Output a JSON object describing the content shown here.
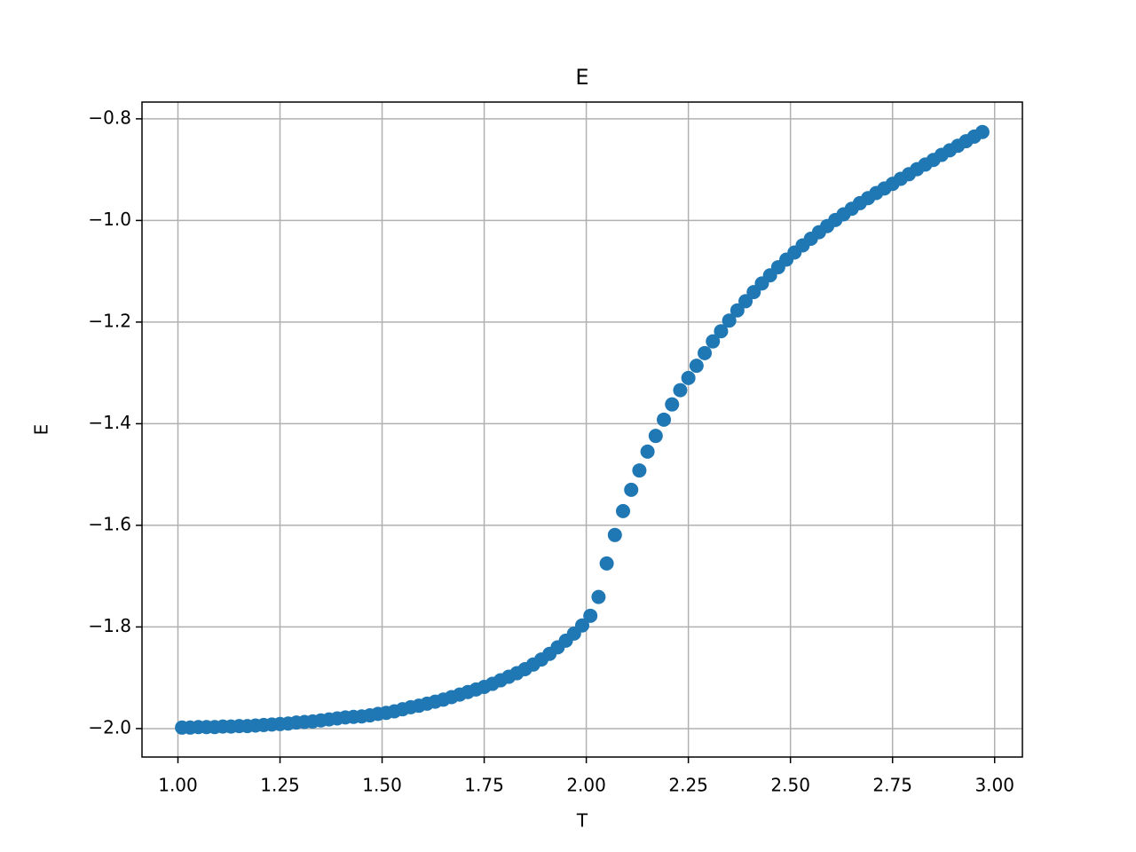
{
  "chart_data": {
    "type": "scatter",
    "title": "E",
    "xlabel": "T",
    "ylabel": "E",
    "color": "#1f77b4",
    "grid": true,
    "xlim": [
      0.912,
      3.068
    ],
    "ylim": [
      -2.056,
      -0.767
    ],
    "xticks": [
      {
        "value": 1.0,
        "label": "1.00"
      },
      {
        "value": 1.25,
        "label": "1.25"
      },
      {
        "value": 1.5,
        "label": "1.50"
      },
      {
        "value": 1.75,
        "label": "1.75"
      },
      {
        "value": 2.0,
        "label": "2.00"
      },
      {
        "value": 2.25,
        "label": "2.25"
      },
      {
        "value": 2.5,
        "label": "2.50"
      },
      {
        "value": 2.75,
        "label": "2.75"
      },
      {
        "value": 3.0,
        "label": "3.00"
      }
    ],
    "yticks": [
      {
        "value": -2.0,
        "label": "−2.0"
      },
      {
        "value": -1.8,
        "label": "−1.8"
      },
      {
        "value": -1.6,
        "label": "−1.6"
      },
      {
        "value": -1.4,
        "label": "−1.4"
      },
      {
        "value": -1.2,
        "label": "−1.2"
      },
      {
        "value": -1.0,
        "label": "−1.0"
      },
      {
        "value": -0.8,
        "label": "−0.8"
      }
    ],
    "x": [
      1.01,
      1.03,
      1.05,
      1.07,
      1.09,
      1.11,
      1.13,
      1.15,
      1.17,
      1.19,
      1.21,
      1.23,
      1.25,
      1.27,
      1.29,
      1.31,
      1.33,
      1.35,
      1.37,
      1.39,
      1.41,
      1.43,
      1.45,
      1.47,
      1.49,
      1.51,
      1.53,
      1.55,
      1.57,
      1.59,
      1.61,
      1.63,
      1.65,
      1.67,
      1.69,
      1.71,
      1.73,
      1.75,
      1.77,
      1.79,
      1.81,
      1.83,
      1.85,
      1.87,
      1.89,
      1.91,
      1.93,
      1.95,
      1.97,
      1.99,
      2.01,
      2.03,
      2.05,
      2.07,
      2.09,
      2.11,
      2.13,
      2.15,
      2.17,
      2.19,
      2.21,
      2.23,
      2.25,
      2.27,
      2.29,
      2.31,
      2.33,
      2.35,
      2.37,
      2.39,
      2.41,
      2.43,
      2.45,
      2.47,
      2.49,
      2.51,
      2.53,
      2.55,
      2.57,
      2.59,
      2.61,
      2.63,
      2.65,
      2.67,
      2.69,
      2.71,
      2.73,
      2.75,
      2.77,
      2.79,
      2.81,
      2.83,
      2.85,
      2.87,
      2.89,
      2.91,
      2.93,
      2.95,
      2.97
    ],
    "values": [
      -1.998,
      -1.998,
      -1.997,
      -1.997,
      -1.997,
      -1.996,
      -1.996,
      -1.995,
      -1.995,
      -1.994,
      -1.993,
      -1.992,
      -1.991,
      -1.99,
      -1.988,
      -1.987,
      -1.986,
      -1.984,
      -1.982,
      -1.98,
      -1.978,
      -1.977,
      -1.976,
      -1.974,
      -1.971,
      -1.969,
      -1.966,
      -1.962,
      -1.958,
      -1.955,
      -1.951,
      -1.947,
      -1.943,
      -1.938,
      -1.933,
      -1.928,
      -1.923,
      -1.918,
      -1.912,
      -1.905,
      -1.898,
      -1.891,
      -1.883,
      -1.874,
      -1.864,
      -1.853,
      -1.84,
      -1.827,
      -1.813,
      -1.797,
      -1.778,
      -1.741,
      -1.675,
      -1.619,
      -1.572,
      -1.53,
      -1.492,
      -1.455,
      -1.424,
      -1.392,
      -1.362,
      -1.334,
      -1.31,
      -1.286,
      -1.261,
      -1.238,
      -1.218,
      -1.197,
      -1.177,
      -1.159,
      -1.141,
      -1.124,
      -1.108,
      -1.092,
      -1.077,
      -1.063,
      -1.049,
      -1.036,
      -1.023,
      -1.011,
      -0.999,
      -0.988,
      -0.977,
      -0.966,
      -0.956,
      -0.946,
      -0.937,
      -0.928,
      -0.918,
      -0.909,
      -0.899,
      -0.89,
      -0.881,
      -0.871,
      -0.862,
      -0.853,
      -0.844,
      -0.835,
      -0.826
    ]
  }
}
